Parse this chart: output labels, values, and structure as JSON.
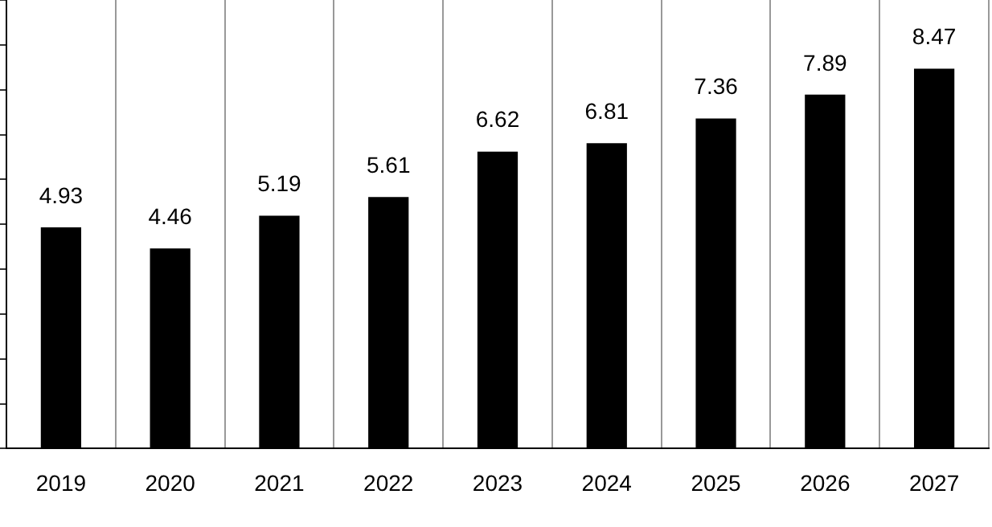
{
  "chart_data": {
    "type": "bar",
    "categories": [
      "2019",
      "2020",
      "2021",
      "2022",
      "2023",
      "2024",
      "2025",
      "2026",
      "2027"
    ],
    "values": [
      4.93,
      4.46,
      5.19,
      5.61,
      6.62,
      6.81,
      7.36,
      7.89,
      8.47
    ],
    "color": "#000000",
    "ylim": [
      0,
      10
    ],
    "yticks": [
      {
        "value": 0,
        "label": null
      },
      {
        "value": 1,
        "label": null
      },
      {
        "value": 2,
        "label": null
      },
      {
        "value": 3,
        "label": null
      },
      {
        "value": 4,
        "label": null
      },
      {
        "value": 5,
        "label": null
      },
      {
        "value": 6,
        "label": null
      },
      {
        "value": 7,
        "label": null
      },
      {
        "value": 8,
        "label": null
      },
      {
        "value": 9,
        "label": null
      },
      {
        "value": 10,
        "label": null
      }
    ],
    "tick_labels": "x",
    "grid": "x",
    "data_labels": true,
    "legend": false
  }
}
